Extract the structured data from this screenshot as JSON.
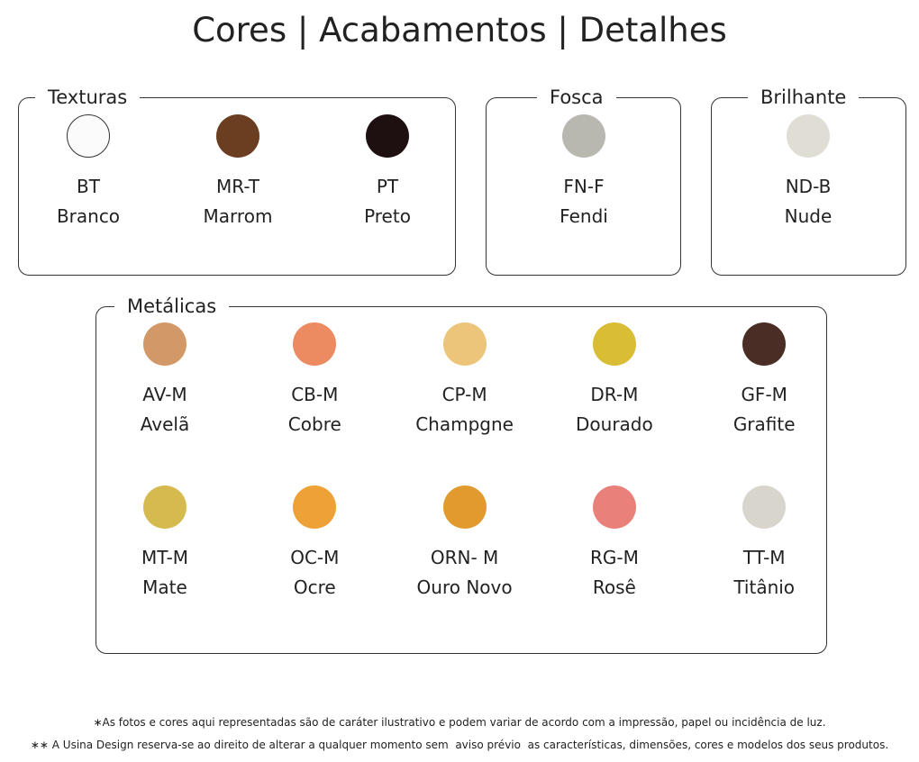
{
  "title": "Cores | Acabamentos | Detalhes",
  "groups": [
    {
      "label": "Texturas",
      "items": [
        {
          "code": "BT",
          "name": "Branco",
          "color": "#fbfbfb"
        },
        {
          "code": "MR-T",
          "name": "Marrom",
          "color": "#6b3e22"
        },
        {
          "code": "PT",
          "name": "Preto",
          "color": "#1e1010"
        }
      ]
    },
    {
      "label": "Fosca",
      "items": [
        {
          "code": "FN-F",
          "name": "Fendi",
          "color": "#b9b8b0"
        }
      ]
    },
    {
      "label": "Brilhante",
      "items": [
        {
          "code": "ND-B",
          "name": "Nude",
          "color": "#e0ddd5"
        }
      ]
    },
    {
      "label": "Metálicas",
      "items": [
        {
          "code": "AV-M",
          "name": "Avelã",
          "color": "#d29868"
        },
        {
          "code": "CB-M",
          "name": "Cobre",
          "color": "#ec8a62"
        },
        {
          "code": "CP-M",
          "name": "Champgne",
          "color": "#ecc57a"
        },
        {
          "code": "DR-M",
          "name": "Dourado",
          "color": "#d9bd34"
        },
        {
          "code": "GF-M",
          "name": "Grafite",
          "color": "#4a2e26"
        },
        {
          "code": "MT-M",
          "name": "Mate",
          "color": "#d5bb4f"
        },
        {
          "code": "OC-M",
          "name": "Ocre",
          "color": "#eea136"
        },
        {
          "code": "ORN- M",
          "name": "Ouro Novo",
          "color": "#e29a2e"
        },
        {
          "code": "RG-M",
          "name": "Rosê",
          "color": "#e9807a"
        },
        {
          "code": "TT-M",
          "name": "Titânio",
          "color": "#d8d6cc"
        }
      ]
    }
  ],
  "footnotes": [
    "∗As fotos e cores aqui representadas são de caráter ilustrativo e podem variar de acordo com a impressão, papel ou incidência de luz.",
    "∗∗ A Usina Design reserva-se ao direito de alterar a qualquer momento sem  aviso prévio  as características, dimensões, cores e modelos dos seus produtos."
  ]
}
